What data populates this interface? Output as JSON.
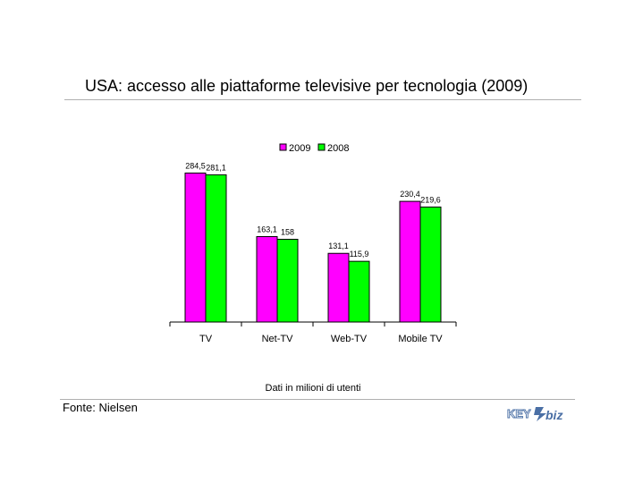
{
  "header": {
    "title": "USA: accesso alle piattaforme televisive per tecnologia (2009)"
  },
  "footer": {
    "note": "Dati in milioni di utenti",
    "source": "Fonte: Nielsen",
    "logo_text": "KEY4biz"
  },
  "colors": {
    "series_2009": "#ff00ff",
    "series_2008": "#00ff00",
    "rule": "#b0b0b0"
  },
  "chart_data": {
    "type": "bar",
    "title": "USA: accesso alle piattaforme televisive per tecnologia (2009)",
    "categories": [
      "TV",
      "Net-TV",
      "Web-TV",
      "Mobile TV"
    ],
    "series": [
      {
        "name": "2009",
        "values": [
          284.5,
          163.1,
          131.1,
          230.4
        ],
        "labels": [
          "284,5",
          "163,1",
          "131,1",
          "230,4"
        ],
        "color": "#ff00ff"
      },
      {
        "name": "2008",
        "values": [
          281.1,
          158,
          115.9,
          219.6
        ],
        "labels": [
          "281,1",
          "158",
          "115,9",
          "219,6"
        ],
        "color": "#00ff00"
      }
    ],
    "ylim": [
      0,
      300
    ],
    "grid": false,
    "legend": "top-center",
    "note": "Dati in milioni di utenti"
  }
}
